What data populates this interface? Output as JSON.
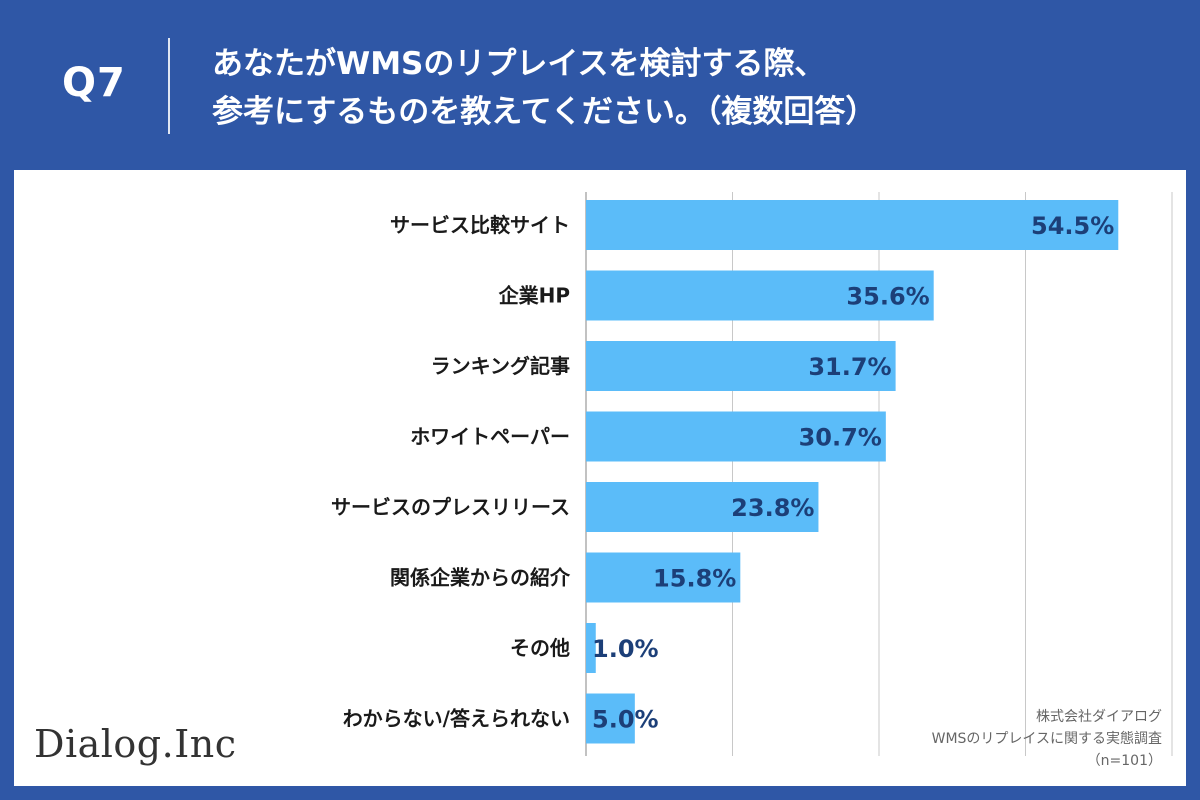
{
  "header": {
    "question_label": "Q7",
    "title_line1": "あなたがWMSのリプレイスを検討する際、",
    "title_line2": "参考にするものを教えてください。（複数回答）"
  },
  "colors": {
    "background": "#2f57a6",
    "bar": "#5bbcf9",
    "value_label": "#1c3f78",
    "grid": "#c8c8c8"
  },
  "chart_data": {
    "type": "bar",
    "orientation": "horizontal",
    "categories": [
      "サービス比較サイト",
      "企業HP",
      "ランキング記事",
      "ホワイトペーパー",
      "サービスのプレスリリース",
      "関係企業からの紹介",
      "その他",
      "わからない/答えられない"
    ],
    "values": [
      54.5,
      35.6,
      31.7,
      30.7,
      23.8,
      15.8,
      1.0,
      5.0
    ],
    "value_labels": [
      "54.5%",
      "35.6%",
      "31.7%",
      "30.7%",
      "23.8%",
      "15.8%",
      "1.0%",
      "5.0%"
    ],
    "xlim": [
      0,
      60
    ],
    "gridlines_at": [
      15,
      30,
      45,
      60
    ],
    "unit": "%"
  },
  "source": {
    "line1": "株式会社ダイアログ",
    "line2": "WMSのリプレイスに関する実態調査",
    "line3": "（n=101）"
  },
  "logo": {
    "text": "Dialog.Inc"
  }
}
